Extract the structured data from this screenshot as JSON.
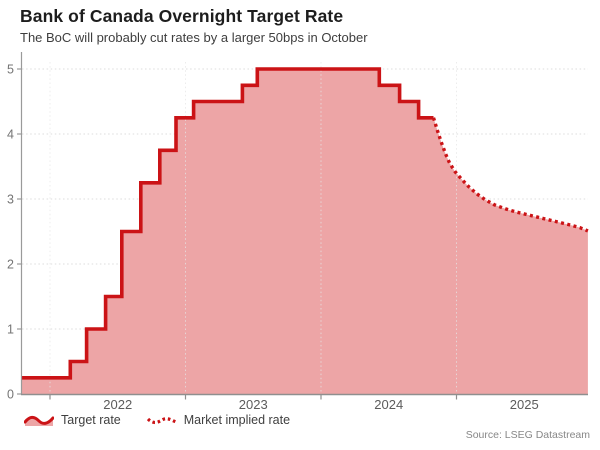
{
  "header": {
    "title": "Bank of Canada Overnight Target Rate",
    "subtitle": "The BoC will probably cut rates by a larger 50bps in October"
  },
  "legend": {
    "items": [
      {
        "label": "Target rate",
        "style": "solid"
      },
      {
        "label": "Market implied rate",
        "style": "dotted"
      }
    ]
  },
  "footer": {
    "source": "Source: LSEG Datastream"
  },
  "chart_data": {
    "type": "area",
    "title": "Bank of Canada Overnight Target Rate",
    "subtitle": "The BoC will probably cut rates by a larger 50bps in October",
    "xlabel": "",
    "ylabel": "",
    "ylim": [
      0,
      5.2
    ],
    "yticks": [
      0,
      1,
      2,
      3,
      4,
      5
    ],
    "y_grid": "dotted",
    "legend_position": "bottom-left",
    "x_axis": {
      "unit": "year",
      "range": [
        2021.79,
        2025.97
      ],
      "ticks": [
        2022,
        2023,
        2024,
        2025
      ],
      "tick_labels": [
        "2022",
        "2023",
        "2024",
        "2025"
      ]
    },
    "series": [
      {
        "name": "Target rate",
        "mode": "step",
        "line_style": "solid",
        "points": [
          [
            2021.79,
            0.25
          ],
          [
            2022.15,
            0.5
          ],
          [
            2022.27,
            1.0
          ],
          [
            2022.41,
            1.5
          ],
          [
            2022.53,
            2.5
          ],
          [
            2022.67,
            3.25
          ],
          [
            2022.81,
            3.75
          ],
          [
            2022.93,
            4.25
          ],
          [
            2023.06,
            4.5
          ],
          [
            2023.42,
            4.75
          ],
          [
            2023.53,
            5.0
          ],
          [
            2024.43,
            4.75
          ],
          [
            2024.58,
            4.5
          ],
          [
            2024.72,
            4.25
          ],
          [
            2024.83,
            4.25
          ]
        ]
      },
      {
        "name": "Market implied rate",
        "mode": "line",
        "line_style": "dotted",
        "points": [
          [
            2024.83,
            4.25
          ],
          [
            2024.86,
            4.05
          ],
          [
            2024.89,
            3.86
          ],
          [
            2024.92,
            3.69
          ],
          [
            2024.95,
            3.55
          ],
          [
            2024.99,
            3.42
          ],
          [
            2025.04,
            3.3
          ],
          [
            2025.09,
            3.19
          ],
          [
            2025.15,
            3.08
          ],
          [
            2025.21,
            2.99
          ],
          [
            2025.28,
            2.91
          ],
          [
            2025.36,
            2.85
          ],
          [
            2025.44,
            2.8
          ],
          [
            2025.52,
            2.76
          ],
          [
            2025.6,
            2.72
          ],
          [
            2025.68,
            2.68
          ],
          [
            2025.76,
            2.64
          ],
          [
            2025.84,
            2.6
          ],
          [
            2025.91,
            2.56
          ],
          [
            2025.97,
            2.51
          ]
        ]
      }
    ],
    "colors": {
      "line": "#cb1316",
      "fill": "#eda5a6",
      "grid": "#dcdcdc",
      "axis": "#9a9a9a",
      "baseline": "#8f8f8f",
      "tick_text": "#757575",
      "year_text": "#5c5c5c"
    }
  }
}
